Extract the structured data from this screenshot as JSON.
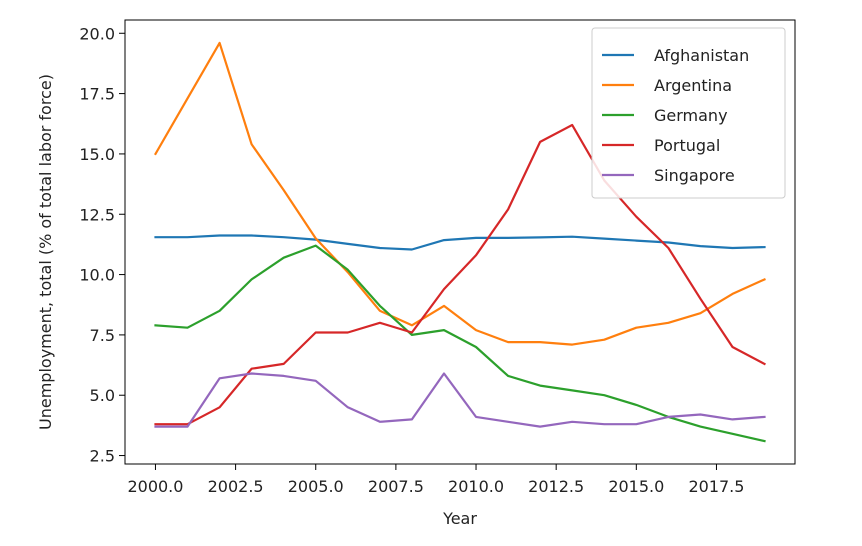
{
  "chart_data": {
    "type": "line",
    "title": "",
    "xlabel": "Year",
    "ylabel": "Unemployment, total (% of total labor force)",
    "xlim": [
      1999.05,
      2019.95
    ],
    "ylim": [
      2.15,
      20.55
    ],
    "xticks": [
      2000.0,
      2002.5,
      2005.0,
      2007.5,
      2010.0,
      2012.5,
      2015.0,
      2017.5
    ],
    "xtick_labels": [
      "2000.0",
      "2002.5",
      "2005.0",
      "2007.5",
      "2010.0",
      "2012.5",
      "2015.0",
      "2017.5"
    ],
    "yticks": [
      2.5,
      5.0,
      7.5,
      10.0,
      12.5,
      15.0,
      17.5,
      20.0
    ],
    "ytick_labels": [
      "2.5",
      "5.0",
      "7.5",
      "10.0",
      "12.5",
      "15.0",
      "17.5",
      "20.0"
    ],
    "grid": false,
    "legend_position": "top-right",
    "x": [
      2000,
      2001,
      2002,
      2003,
      2004,
      2005,
      2006,
      2007,
      2008,
      2009,
      2010,
      2011,
      2012,
      2013,
      2014,
      2015,
      2016,
      2017,
      2018,
      2019
    ],
    "series": [
      {
        "name": "Afghanistan",
        "color": "#1f77b4",
        "values": [
          11.55,
          11.55,
          11.62,
          11.62,
          11.55,
          11.45,
          11.27,
          11.1,
          11.04,
          11.43,
          11.52,
          11.52,
          11.54,
          11.57,
          11.49,
          11.41,
          11.33,
          11.18,
          11.1,
          11.14
        ]
      },
      {
        "name": "Argentina",
        "color": "#ff7f0e",
        "values": [
          15.0,
          17.3,
          19.6,
          15.4,
          13.5,
          11.5,
          10.1,
          8.5,
          7.9,
          8.7,
          7.7,
          7.2,
          7.2,
          7.1,
          7.3,
          7.8,
          8.0,
          8.4,
          9.2,
          9.8
        ]
      },
      {
        "name": "Germany",
        "color": "#2ca02c",
        "values": [
          7.9,
          7.8,
          8.5,
          9.8,
          10.7,
          11.2,
          10.2,
          8.7,
          7.5,
          7.7,
          7.0,
          5.8,
          5.4,
          5.2,
          5.0,
          4.6,
          4.1,
          3.7,
          3.4,
          3.1
        ]
      },
      {
        "name": "Portugal",
        "color": "#d62728",
        "values": [
          3.8,
          3.8,
          4.5,
          6.1,
          6.3,
          7.6,
          7.6,
          8.0,
          7.6,
          9.4,
          10.8,
          12.7,
          15.5,
          16.2,
          13.9,
          12.4,
          11.1,
          9.0,
          7.0,
          6.3
        ]
      },
      {
        "name": "Singapore",
        "color": "#9467bd",
        "values": [
          3.7,
          3.7,
          5.7,
          5.9,
          5.8,
          5.6,
          4.5,
          3.9,
          4.0,
          5.9,
          4.1,
          3.9,
          3.7,
          3.9,
          3.8,
          3.8,
          4.1,
          4.2,
          4.0,
          4.1
        ]
      }
    ]
  }
}
